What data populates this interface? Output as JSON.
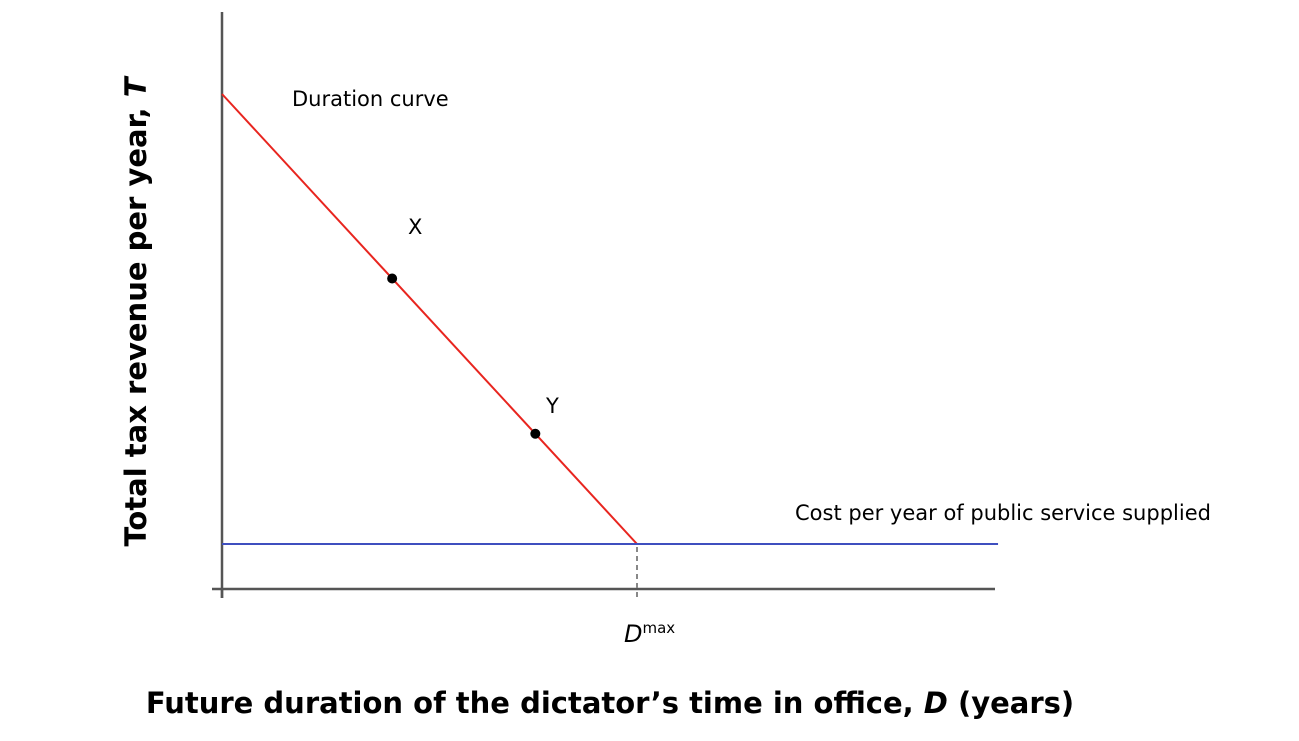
{
  "chart_data": {
    "type": "line",
    "title": "",
    "xlabel": {
      "main": "Future duration of the dictator’s time in office, ",
      "var": "D",
      "unit": " (years)"
    },
    "ylabel": {
      "main": "Total tax revenue per year, ",
      "var": "T"
    },
    "x_tick_labels": [
      {
        "base": "D",
        "sup": "max",
        "x": 1
      }
    ],
    "xlim": [
      0,
      1.87
    ],
    "ylim": [
      0,
      1.15
    ],
    "series": [
      {
        "name": "Duration curve",
        "color": "#e8251f",
        "x": [
          0,
          1
        ],
        "y": [
          1.1,
          0.1
        ]
      },
      {
        "name": "Cost per year of public service supplied",
        "color": "#3f4fbf",
        "x": [
          0,
          1.87
        ],
        "y": [
          0.1,
          0.1
        ]
      }
    ],
    "points": [
      {
        "label": "X",
        "x": 0.41,
        "y": 0.69
      },
      {
        "label": "Y",
        "x": 0.755,
        "y": 0.345
      }
    ],
    "dashed_guide": {
      "x": 1,
      "y_from": 0,
      "y_to": 0.1,
      "color": "#888888"
    },
    "grid": false,
    "legend": "none"
  }
}
